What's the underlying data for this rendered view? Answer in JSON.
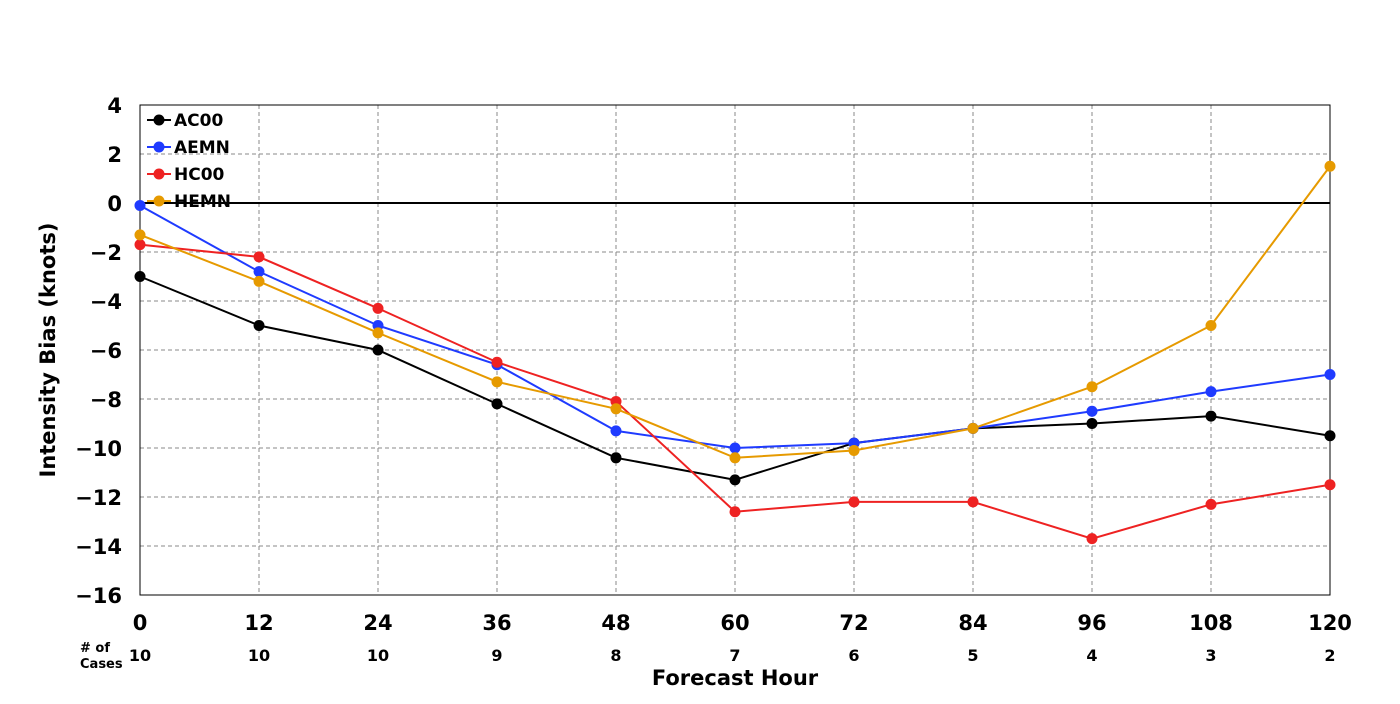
{
  "chart_data": {
    "type": "line",
    "xlabel": "Forecast Hour",
    "ylabel": "Intensity Bias (knots)",
    "x": [
      0,
      12,
      24,
      36,
      48,
      60,
      72,
      84,
      96,
      108,
      120
    ],
    "x_ticks": [
      "0",
      "12",
      "24",
      "36",
      "48",
      "60",
      "72",
      "84",
      "96",
      "108",
      "120"
    ],
    "xlim": [
      0,
      120
    ],
    "ylim": [
      -16,
      4
    ],
    "y_ticks": [
      "4",
      "2",
      "0",
      "−2",
      "−4",
      "−6",
      "−8",
      "−10",
      "−12",
      "−14",
      "−16"
    ],
    "y_tick_values": [
      4,
      2,
      0,
      -2,
      -4,
      -6,
      -8,
      -10,
      -12,
      -14,
      -16
    ],
    "grid": true,
    "zero_line": true,
    "legend_position": "top-left",
    "cases_label": "# of Cases",
    "cases": [
      "10",
      "10",
      "10",
      "9",
      "8",
      "7",
      "6",
      "5",
      "4",
      "3",
      "2"
    ],
    "series": [
      {
        "name": "AC00",
        "color": "#000000",
        "values": [
          -3.0,
          -5.0,
          -6.0,
          -8.2,
          -10.4,
          -11.3,
          -9.8,
          -9.2,
          -9.0,
          -8.7,
          -9.5
        ]
      },
      {
        "name": "AEMN",
        "color": "#1f3bff",
        "values": [
          -0.1,
          -2.8,
          -5.0,
          -6.6,
          -9.3,
          -10.0,
          -9.8,
          -9.2,
          -8.5,
          -7.7,
          -7.0
        ]
      },
      {
        "name": "HC00",
        "color": "#ee2222",
        "values": [
          -1.7,
          -2.2,
          -4.3,
          -6.5,
          -8.1,
          -12.6,
          -12.2,
          -12.2,
          -13.7,
          -12.3,
          -11.5
        ]
      },
      {
        "name": "HEMN",
        "color": "#e69a00",
        "values": [
          -1.3,
          -3.2,
          -5.3,
          -7.3,
          -8.4,
          -10.4,
          -10.1,
          -9.2,
          -7.5,
          -5.0,
          1.5
        ]
      }
    ]
  }
}
